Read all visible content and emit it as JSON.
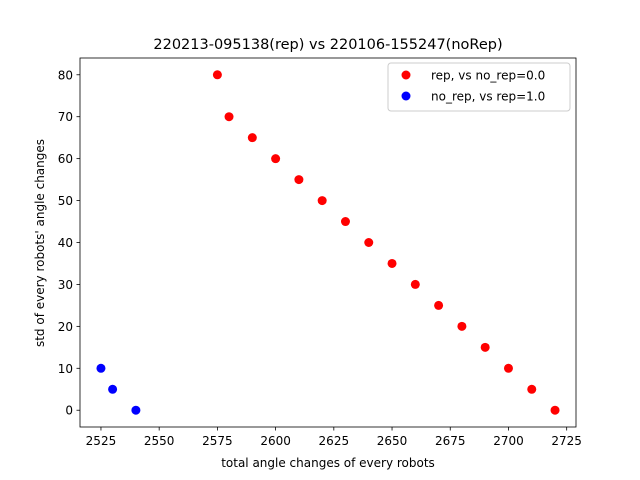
{
  "chart_data": {
    "type": "scatter",
    "title": "220213-095138(rep) vs 220106-155247(noRep)",
    "xlabel": "total angle changes of every robots",
    "ylabel": "std of every robots' angle changes",
    "xlim": [
      2516,
      2729
    ],
    "ylim": [
      -4,
      84
    ],
    "xticks": [
      2525,
      2550,
      2575,
      2600,
      2625,
      2650,
      2675,
      2700,
      2725
    ],
    "yticks": [
      0,
      10,
      20,
      30,
      40,
      50,
      60,
      70,
      80
    ],
    "grid": false,
    "legend_position": "top-right",
    "series": [
      {
        "name": "rep, vs no_rep=0.0",
        "color": "#ff0000",
        "points": [
          [
            2575,
            80
          ],
          [
            2580,
            70
          ],
          [
            2590,
            65
          ],
          [
            2600,
            60
          ],
          [
            2610,
            55
          ],
          [
            2620,
            50
          ],
          [
            2630,
            45
          ],
          [
            2640,
            40
          ],
          [
            2650,
            35
          ],
          [
            2660,
            30
          ],
          [
            2670,
            25
          ],
          [
            2680,
            20
          ],
          [
            2690,
            15
          ],
          [
            2700,
            10
          ],
          [
            2710,
            5
          ],
          [
            2720,
            0
          ]
        ]
      },
      {
        "name": "no_rep, vs rep=1.0",
        "color": "#0000ff",
        "points": [
          [
            2525,
            10
          ],
          [
            2530,
            5
          ],
          [
            2540,
            0
          ]
        ]
      }
    ]
  }
}
